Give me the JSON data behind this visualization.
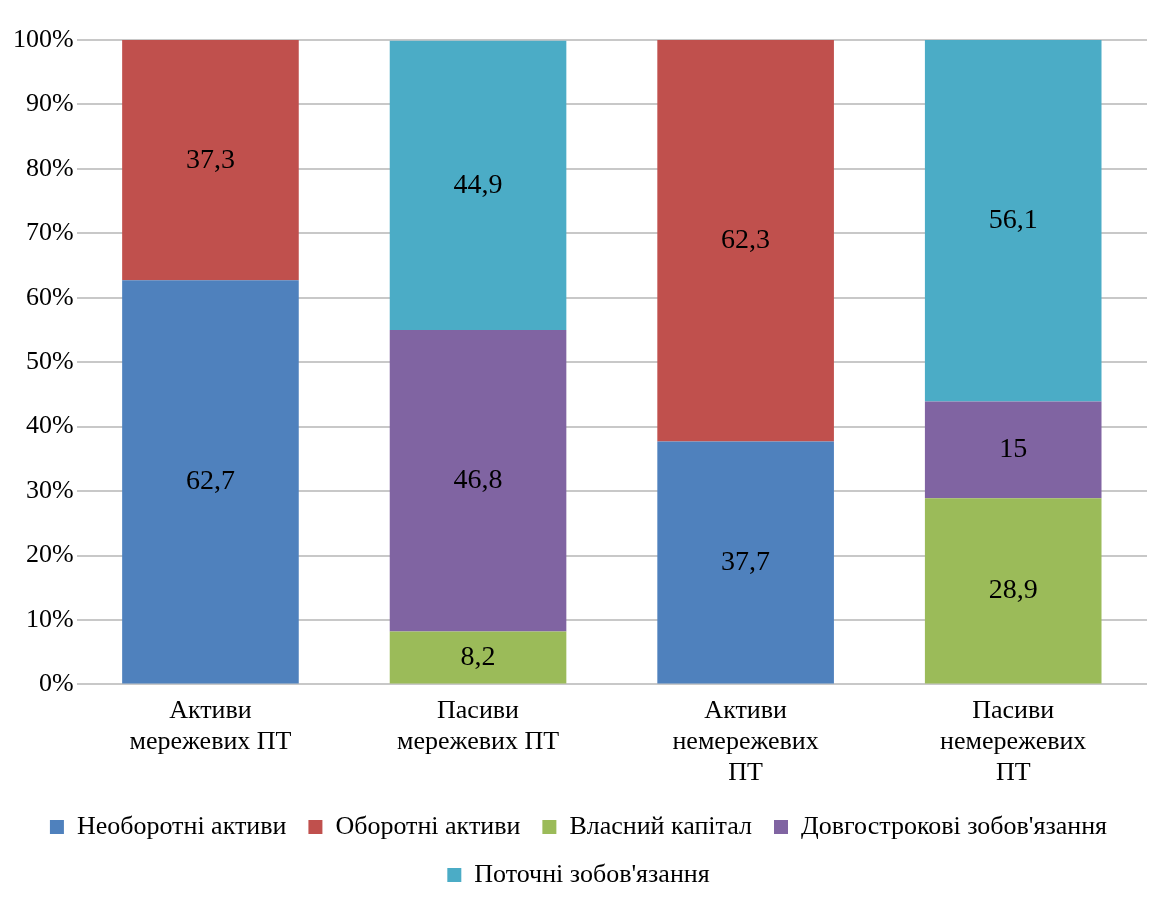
{
  "chart_data": {
    "type": "bar",
    "stacked": true,
    "categories": [
      "Активи мережевих ПТ",
      "Пасиви мережевих ПТ",
      "Активи немережевих ПТ",
      "Пасиви немережевих ПТ"
    ],
    "series": [
      {
        "name": "Необоротні активи",
        "color": "#4f81bd",
        "values": [
          62.7,
          null,
          37.7,
          null
        ],
        "value_labels": [
          "62,7",
          null,
          "37,7",
          null
        ]
      },
      {
        "name": "Оборотні активи",
        "color": "#c0504d",
        "values": [
          37.3,
          null,
          62.3,
          null
        ],
        "value_labels": [
          "37,3",
          null,
          "62,3",
          null
        ]
      },
      {
        "name": "Власний капітал",
        "color": "#9bbb59",
        "values": [
          null,
          8.2,
          null,
          28.9
        ],
        "value_labels": [
          null,
          "8,2",
          null,
          "28,9"
        ]
      },
      {
        "name": "Довгострокові зобов'язання",
        "color": "#8064a2",
        "values": [
          null,
          46.8,
          null,
          15
        ],
        "value_labels": [
          null,
          "46,8",
          null,
          "15"
        ]
      },
      {
        "name": "Поточні зобов'язання",
        "color": "#4bacc6",
        "values": [
          null,
          44.9,
          null,
          56.1
        ],
        "value_labels": [
          null,
          "44,9",
          null,
          "56,1"
        ]
      }
    ],
    "ylim": [
      0,
      100
    ],
    "yticks": [
      {
        "value": 0,
        "label": "0%"
      },
      {
        "value": 10,
        "label": "10%"
      },
      {
        "value": 20,
        "label": "20%"
      },
      {
        "value": 30,
        "label": "30%"
      },
      {
        "value": 40,
        "label": "40%"
      },
      {
        "value": 50,
        "label": "50%"
      },
      {
        "value": 60,
        "label": "60%"
      },
      {
        "value": 70,
        "label": "70%"
      },
      {
        "value": 80,
        "label": "80%"
      },
      {
        "value": 90,
        "label": "90%"
      },
      {
        "value": 100,
        "label": "100%"
      }
    ],
    "grid": "y",
    "legend": "bottom"
  }
}
